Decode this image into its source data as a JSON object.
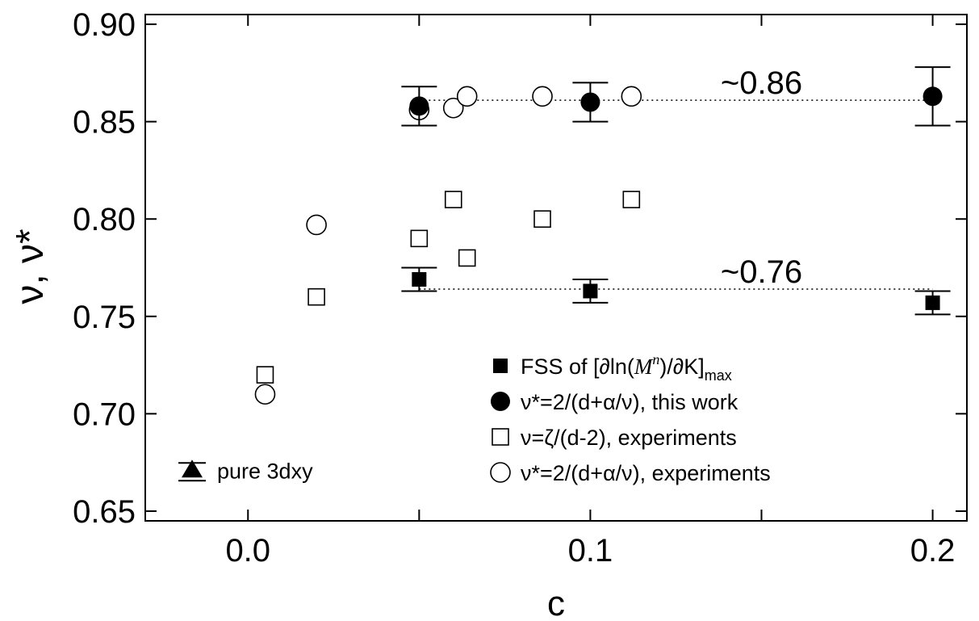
{
  "chart_data": {
    "type": "scatter",
    "xlabel": "c",
    "ylabel": "ν, ν*",
    "xlim": [
      -0.03,
      0.21
    ],
    "ylim": [
      0.645,
      0.905
    ],
    "x_ticks": [
      {
        "v": 0.0,
        "label": "0.0"
      },
      {
        "v": 0.1,
        "label": "0.1"
      },
      {
        "v": 0.2,
        "label": "0.2"
      }
    ],
    "x_minor_ticks": [
      0.05,
      0.15
    ],
    "y_ticks": [
      {
        "v": 0.65,
        "label": "0.65"
      },
      {
        "v": 0.7,
        "label": "0.70"
      },
      {
        "v": 0.75,
        "label": "0.75"
      },
      {
        "v": 0.8,
        "label": "0.80"
      },
      {
        "v": 0.85,
        "label": "0.85"
      },
      {
        "v": 0.9,
        "label": "0.90"
      }
    ],
    "series": [
      {
        "name": "FSS of [∂ln(M^n)/∂K]max",
        "marker": "filled-square",
        "points": [
          {
            "x": 0.05,
            "y": 0.769,
            "err": 0.006
          },
          {
            "x": 0.1,
            "y": 0.763,
            "err": 0.006
          },
          {
            "x": 0.2,
            "y": 0.757,
            "err": 0.006
          }
        ]
      },
      {
        "name": "ν*=2/(d+α/ν), this work",
        "marker": "filled-circle",
        "points": [
          {
            "x": 0.05,
            "y": 0.858,
            "err": 0.01
          },
          {
            "x": 0.1,
            "y": 0.86,
            "err": 0.01
          },
          {
            "x": 0.2,
            "y": 0.863,
            "err": 0.015
          }
        ]
      },
      {
        "name": "ν=ζ/(d-2), experiments",
        "marker": "open-square",
        "points": [
          {
            "x": 0.005,
            "y": 0.72
          },
          {
            "x": 0.02,
            "y": 0.76
          },
          {
            "x": 0.05,
            "y": 0.79
          },
          {
            "x": 0.06,
            "y": 0.81
          },
          {
            "x": 0.064,
            "y": 0.78
          },
          {
            "x": 0.086,
            "y": 0.8
          },
          {
            "x": 0.112,
            "y": 0.81
          }
        ]
      },
      {
        "name": "ν*=2/(d+α/ν), experiments",
        "marker": "open-circle",
        "points": [
          {
            "x": 0.005,
            "y": 0.71
          },
          {
            "x": 0.02,
            "y": 0.797
          },
          {
            "x": 0.05,
            "y": 0.856
          },
          {
            "x": 0.06,
            "y": 0.857
          },
          {
            "x": 0.064,
            "y": 0.863
          },
          {
            "x": 0.086,
            "y": 0.863
          },
          {
            "x": 0.112,
            "y": 0.863
          }
        ]
      }
    ],
    "reference_lines": [
      {
        "y": 0.861,
        "x_start": 0.05,
        "x_end": 0.2,
        "label": "~0.86",
        "style": "dotted"
      },
      {
        "y": 0.764,
        "x_start": 0.05,
        "x_end": 0.2,
        "label": "~0.76",
        "style": "dotted"
      }
    ],
    "pure_3dxy": {
      "label": "pure 3dxy",
      "marker": "filled-triangle",
      "y": 0.671,
      "err": 0.003
    },
    "legend": {
      "placement": "bottom-right"
    },
    "grid": false
  }
}
